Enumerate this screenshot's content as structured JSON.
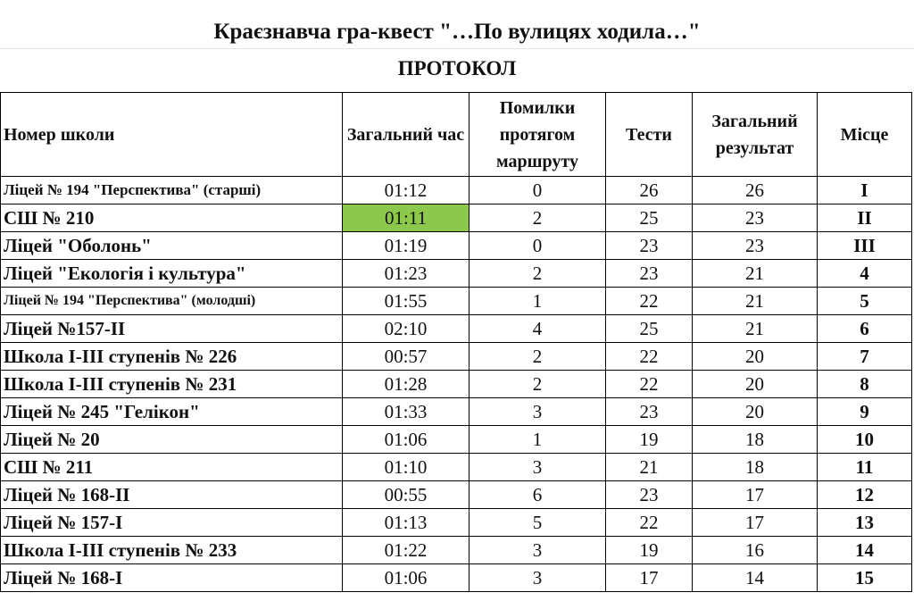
{
  "header": {
    "title": "Краєзнавча гра-квест \"…По вулицях ходила…\"",
    "subtitle": "ПРОТОКОЛ"
  },
  "table": {
    "columns": [
      "Номер школи",
      "Загальний час",
      "Помилки протягом маршруту",
      "Тести",
      "Загальний результат",
      "Місце"
    ],
    "rows": [
      [
        "Ліцей № 194 \"Перспектива\" (старші)",
        "01:12",
        0,
        26,
        26,
        "I"
      ],
      [
        "СШ № 210",
        "01:11",
        2,
        25,
        23,
        "II"
      ],
      [
        "Ліцей \"Оболонь\"",
        "01:19",
        0,
        23,
        23,
        "III"
      ],
      [
        "Ліцей \"Екологія і культура\"",
        "01:23",
        2,
        23,
        21,
        4
      ],
      [
        "Ліцей № 194 \"Перспектива\" (молодші)",
        "01:55",
        1,
        22,
        21,
        5
      ],
      [
        "Ліцей №157-ІІ",
        "02:10",
        4,
        25,
        21,
        6
      ],
      [
        "Школа І-ІІІ ступенів № 226",
        "00:57",
        2,
        22,
        20,
        7
      ],
      [
        "Школа І-ІІІ ступенів № 231",
        "01:28",
        2,
        22,
        20,
        8
      ],
      [
        "Ліцей № 245 \"Гелікон\"",
        "01:33",
        3,
        23,
        20,
        9
      ],
      [
        "Ліцей № 20",
        "01:06",
        1,
        19,
        18,
        10
      ],
      [
        "СШ № 211",
        "01:10",
        3,
        21,
        18,
        11
      ],
      [
        "Ліцей № 168-ІІ",
        "00:55",
        6,
        23,
        17,
        12
      ],
      [
        "Ліцей № 157-І",
        "01:13",
        5,
        22,
        17,
        13
      ],
      [
        "Школа І-ІІІ ступенів № 233",
        "01:22",
        3,
        19,
        16,
        14
      ],
      [
        "Ліцей № 168-І",
        "01:06",
        3,
        17,
        14,
        15
      ]
    ]
  }
}
